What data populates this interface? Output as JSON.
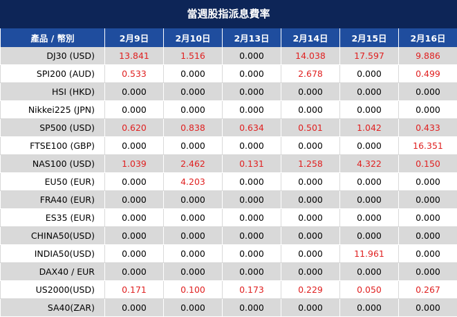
{
  "title": "當週股指派息費率",
  "header": {
    "product": "產品 / 幣別",
    "dates": [
      "2月9日",
      "2月10日",
      "2月13日",
      "2月14日",
      "2月15日",
      "2月16日"
    ]
  },
  "colors": {
    "header_bg": "#0d2557",
    "subheader_bg": "#1f4d9e",
    "row_gray": "#d9d9d9",
    "positive": "#e02020"
  },
  "rows": [
    {
      "product": "DJ30 (USD)",
      "values": [
        "13.841",
        "1.516",
        "0.000",
        "14.038",
        "17.597",
        "9.886"
      ]
    },
    {
      "product": "SPI200 (AUD)",
      "values": [
        "0.533",
        "0.000",
        "0.000",
        "2.678",
        "0.000",
        "0.499"
      ]
    },
    {
      "product": "HSI (HKD)",
      "values": [
        "0.000",
        "0.000",
        "0.000",
        "0.000",
        "0.000",
        "0.000"
      ]
    },
    {
      "product": "Nikkei225 (JPN)",
      "values": [
        "0.000",
        "0.000",
        "0.000",
        "0.000",
        "0.000",
        "0.000"
      ]
    },
    {
      "product": "SP500 (USD)",
      "values": [
        "0.620",
        "0.838",
        "0.634",
        "0.501",
        "1.042",
        "0.433"
      ]
    },
    {
      "product": "FTSE100 (GBP)",
      "values": [
        "0.000",
        "0.000",
        "0.000",
        "0.000",
        "0.000",
        "16.351"
      ]
    },
    {
      "product": "NAS100 (USD)",
      "values": [
        "1.039",
        "2.462",
        "0.131",
        "1.258",
        "4.322",
        "0.150"
      ]
    },
    {
      "product": "EU50 (EUR)",
      "values": [
        "0.000",
        "4.203",
        "0.000",
        "0.000",
        "0.000",
        "0.000"
      ]
    },
    {
      "product": "FRA40 (EUR)",
      "values": [
        "0.000",
        "0.000",
        "0.000",
        "0.000",
        "0.000",
        "0.000"
      ]
    },
    {
      "product": "ES35 (EUR)",
      "values": [
        "0.000",
        "0.000",
        "0.000",
        "0.000",
        "0.000",
        "0.000"
      ]
    },
    {
      "product": "CHINA50(USD)",
      "values": [
        "0.000",
        "0.000",
        "0.000",
        "0.000",
        "0.000",
        "0.000"
      ]
    },
    {
      "product": "INDIA50(USD)",
      "values": [
        "0.000",
        "0.000",
        "0.000",
        "0.000",
        "11.961",
        "0.000"
      ]
    },
    {
      "product": "DAX40 / EUR",
      "values": [
        "0.000",
        "0.000",
        "0.000",
        "0.000",
        "0.000",
        "0.000"
      ]
    },
    {
      "product": "US2000(USD)",
      "values": [
        "0.171",
        "0.100",
        "0.173",
        "0.229",
        "0.050",
        "0.267"
      ]
    },
    {
      "product": "SA40(ZAR)",
      "values": [
        "0.000",
        "0.000",
        "0.000",
        "0.000",
        "0.000",
        "0.000"
      ]
    }
  ]
}
